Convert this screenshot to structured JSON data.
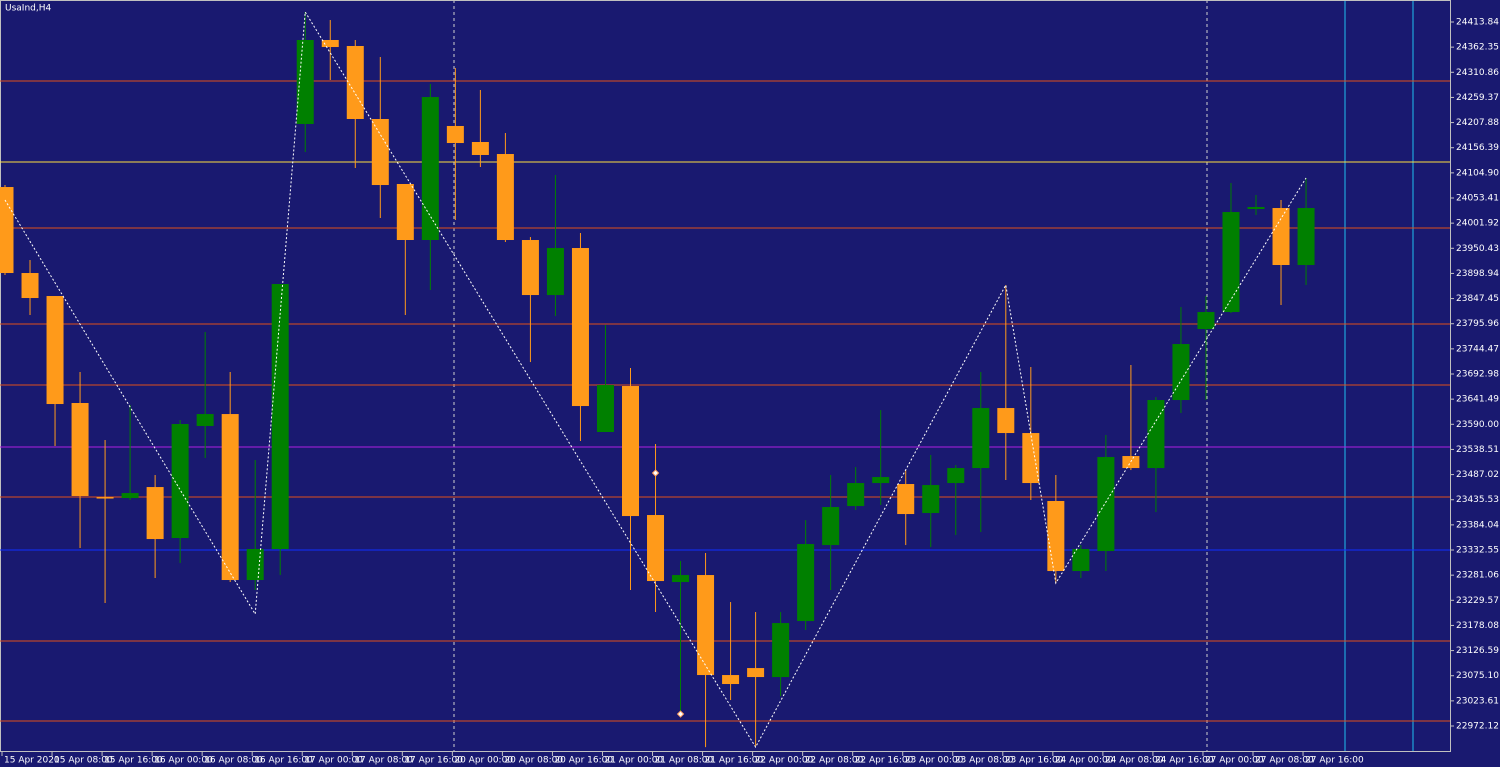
{
  "chart_data": {
    "type": "candlestick",
    "title": "UsaInd,H4",
    "categories": [
      "15 Apr 2020",
      null,
      "15 Apr 08:00",
      null,
      "15 Apr 16:00",
      null,
      "16 Apr 00:00",
      null,
      "16 Apr 08:00",
      null,
      "16 Apr 16:00",
      null,
      "17 Apr 00:00",
      null,
      "17 Apr 08:00",
      null,
      "17 Apr 16:00",
      null,
      "20 Apr 00:00",
      null,
      "20 Apr 08:00",
      null,
      "20 Apr 16:00",
      null,
      "21 Apr 00:00",
      null,
      "21 Apr 08:00",
      null,
      "21 Apr 16:00",
      null,
      "22 Apr 00:00",
      null,
      "22 Apr 08:00",
      null,
      "22 Apr 16:00",
      null,
      "23 Apr 00:00",
      null,
      "23 Apr 08:00",
      null,
      "23 Apr 16:00",
      null,
      "24 Apr 00:00",
      null,
      "24 Apr 08:00",
      null,
      "24 Apr 16:00",
      null,
      "27 Apr 00:00",
      null,
      "27 Apr 08:00",
      null,
      "27 Apr 16:00"
    ],
    "open": [
      24075.9,
      23899.8,
      23852.7,
      23633.6,
      23441.0,
      23439.0,
      23461.5,
      23357.1,
      23586.5,
      23611.0,
      23271.1,
      23334.6,
      24205.0,
      24377.0,
      24364.7,
      24215.2,
      24082.1,
      23967.4,
      24200.9,
      24168.1,
      24143.5,
      23967.4,
      23854.7,
      23951.0,
      23574.2,
      23668.4,
      23404.2,
      23267.0,
      23281.3,
      23076.5,
      23090.8,
      23072.4,
      23187.1,
      23342.7,
      23422.6,
      23469.7,
      23467.7,
      23408.3,
      23469.7,
      23500.4,
      23623.3,
      23572.1,
      23432.9,
      23289.5,
      23330.5,
      23525.0,
      23500.4,
      23639.7,
      23785.1,
      23819.9,
      24030.9,
      24032.9,
      23916.2
    ],
    "high": [
      24080.0,
      23926.4,
      23852.7,
      23697.0,
      23557.8,
      23629.5,
      23486.1,
      23598.7,
      23779.0,
      23697.0,
      23516.8,
      23877.3,
      24434.3,
      24417.9,
      24377.0,
      24342.2,
      24082.1,
      24286.9,
      24319.6,
      24274.6,
      24186.5,
      23973.5,
      24100.5,
      23981.7,
      23793.3,
      23705.2,
      23549.6,
      23310.0,
      23326.4,
      23226.0,
      23205.5,
      23205.5,
      23393.9,
      23486.1,
      23502.5,
      23619.2,
      23496.3,
      23527.1,
      23506.6,
      23697.0,
      23875.2,
      23707.3,
      23486.1,
      23342.7,
      23568.0,
      23711.4,
      23645.8,
      23830.2,
      23852.7,
      24084.1,
      24059.5,
      24049.3,
      24094.4
    ],
    "low": [
      23895.7,
      23813.8,
      23545.5,
      23336.6,
      23224.0,
      23434.9,
      23275.2,
      23305.9,
      23520.9,
      23267.0,
      23250.6,
      23281.3,
      24147.6,
      24295.1,
      24114.8,
      24012.4,
      23813.8,
      23865.0,
      24008.3,
      24116.9,
      23963.3,
      23717.5,
      23811.7,
      23555.7,
      23574.2,
      23250.6,
      23205.5,
      22994.6,
      22929.0,
      23025.3,
      22931.1,
      23033.5,
      23168.7,
      23250.6,
      23414.4,
      23424.7,
      23342.7,
      23338.6,
      23363.2,
      23369.4,
      23475.9,
      23434.9,
      23264.9,
      23275.2,
      23289.5,
      23496.3,
      23410.3,
      23613.1,
      23639.7,
      23817.9,
      24018.6,
      23834.3,
      23875.2
    ],
    "close": [
      23899.8,
      23848.6,
      23631.5,
      23443.1,
      23439.0,
      23449.2,
      23355.0,
      23590.6,
      23611.0,
      23271.1,
      23334.6,
      23877.3,
      24377.0,
      24362.6,
      24215.2,
      24080.0,
      23967.4,
      24260.2,
      24166.0,
      24141.5,
      23967.4,
      23854.7,
      23951.0,
      23627.4,
      23670.4,
      23402.1,
      23269.0,
      23281.3,
      23076.5,
      23058.1,
      23072.4,
      23183.0,
      23344.8,
      23420.6,
      23469.7,
      23482.0,
      23406.2,
      23465.6,
      23500.4,
      23623.3,
      23572.1,
      23469.7,
      23289.5,
      23334.6,
      23523.0,
      23500.4,
      23639.7,
      23754.4,
      23819.9,
      24024.7,
      24035.0,
      23916.2,
      24032.9
    ],
    "up_color": "#008000",
    "down_color": "#ff9a1a",
    "zigzag": {
      "indices": [
        0,
        10,
        12,
        30,
        40,
        42,
        52
      ],
      "values": [
        24049.3,
        23201.4,
        24434.3,
        22929.0,
        23875.2,
        23264.9,
        24094.4
      ],
      "color": "#ffffff"
    },
    "markers": {
      "indices": [
        26,
        27
      ],
      "values": [
        23490.2,
        22996.6
      ],
      "color": "#ffa060"
    },
    "levels": [
      {
        "value": 24293.0,
        "color": "#e0501a"
      },
      {
        "value": 24127.1,
        "color": "#ffe040"
      },
      {
        "value": 23992.0,
        "color": "#e0501a"
      },
      {
        "value": 23795.3,
        "color": "#e0501a"
      },
      {
        "value": 23670.4,
        "color": "#e0501a"
      },
      {
        "value": 23543.4,
        "color": "#b020e0"
      },
      {
        "value": 23441.0,
        "color": "#e0501a"
      },
      {
        "value": 23332.5,
        "color": "#1030ff"
      },
      {
        "value": 23146.1,
        "color": "#e0501a"
      },
      {
        "value": 22982.3,
        "color": "#e0501a"
      }
    ],
    "ylim": [
      22918.9,
      24458.9
    ],
    "yticks": [
      24413.84,
      24362.35,
      24310.86,
      24259.37,
      24207.88,
      24156.39,
      {
        "value": 24104.9,
        "label": "24104.90"
      },
      24053.41,
      24001.92,
      23950.43,
      23898.94,
      23847.45,
      23795.96,
      23744.47,
      23692.98,
      23641.49,
      {
        "value": 23590,
        "label": "23590.00"
      },
      23538.51,
      23487.02,
      23435.53,
      23384.04,
      23332.55,
      23281.06,
      23229.57,
      23178.08,
      23126.59,
      {
        "value": 23075.1,
        "label": "23075.10"
      },
      23023.61,
      22972.12
    ]
  }
}
